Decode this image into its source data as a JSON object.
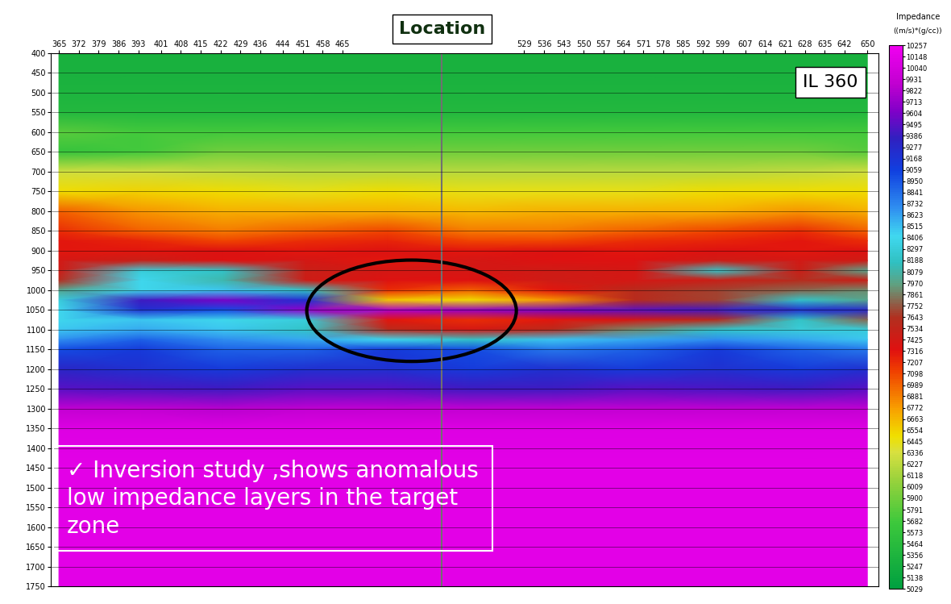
{
  "chart_data": {
    "type": "heatmap",
    "title": "IL 360",
    "marker_label": "Location",
    "location_trace": 500,
    "annotation_lines": [
      "✓ Inversion study ,shows anomalous",
      "low impedance layers in the target",
      "zone"
    ],
    "colorbar_title": "Impedance",
    "colorbar_unit": "((m/s)*(g/cc))",
    "grid": true,
    "x": [
      365,
      394,
      423,
      452,
      481,
      510,
      539,
      568,
      597,
      626,
      650
    ],
    "y": [
      400,
      450,
      500,
      550,
      600,
      650,
      700,
      750,
      800,
      850,
      875,
      900,
      925,
      950,
      975,
      1000,
      1025,
      1050,
      1075,
      1100,
      1125,
      1150,
      1200,
      1250,
      1300,
      1350,
      1450,
      1550,
      1650,
      1750
    ],
    "cells": [
      [
        5300,
        5300,
        5300,
        5300,
        5300,
        5300,
        5300,
        5300,
        5300,
        5300,
        5300
      ],
      [
        5300,
        5300,
        5300,
        5300,
        5300,
        5300,
        5300,
        5300,
        5300,
        5300,
        5300
      ],
      [
        5350,
        5350,
        5350,
        5350,
        5350,
        5350,
        5350,
        5350,
        5350,
        5350,
        5350
      ],
      [
        5400,
        5400,
        5400,
        5400,
        5400,
        5400,
        5400,
        5400,
        5400,
        5400,
        5400
      ],
      [
        5800,
        5700,
        5700,
        5700,
        5700,
        5700,
        5700,
        5700,
        5700,
        5700,
        5700
      ],
      [
        5600,
        5700,
        5900,
        5900,
        5900,
        5900,
        5900,
        5900,
        5900,
        5900,
        5800
      ],
      [
        6300,
        6300,
        6250,
        6200,
        6200,
        6200,
        6200,
        6200,
        6200,
        6250,
        6300
      ],
      [
        6500,
        6550,
        6500,
        6450,
        6500,
        6450,
        6450,
        6450,
        6500,
        6500,
        6500
      ],
      [
        7000,
        6800,
        6700,
        6700,
        6700,
        6650,
        6700,
        6700,
        6700,
        6800,
        6700
      ],
      [
        7200,
        7000,
        6900,
        7000,
        7100,
        6900,
        6900,
        7000,
        7100,
        7200,
        7000
      ],
      [
        7300,
        7250,
        7100,
        7200,
        7250,
        7100,
        7100,
        7200,
        7250,
        7300,
        7200
      ],
      [
        7300,
        7300,
        7350,
        7300,
        7350,
        7300,
        7350,
        7300,
        7350,
        7300,
        7350
      ],
      [
        7400,
        7500,
        7350,
        7400,
        7300,
        7400,
        7350,
        7350,
        7450,
        7400,
        7450
      ],
      [
        7450,
        8300,
        8200,
        7500,
        7400,
        7400,
        7450,
        7400,
        8200,
        7500,
        8000
      ],
      [
        7600,
        8400,
        8100,
        7450,
        7350,
        7350,
        7450,
        7400,
        7500,
        7600,
        7500
      ],
      [
        8000,
        8400,
        8500,
        8200,
        7200,
        7000,
        7300,
        7600,
        7700,
        7800,
        7900
      ],
      [
        8300,
        9400,
        9600,
        9200,
        6600,
        6500,
        6800,
        7600,
        7700,
        8200,
        8000
      ],
      [
        8400,
        9200,
        9000,
        9700,
        9800,
        9700,
        9600,
        9500,
        9400,
        9200,
        9300
      ],
      [
        8400,
        8500,
        8400,
        8300,
        7300,
        7200,
        7300,
        7400,
        7600,
        8200,
        7800
      ],
      [
        8500,
        8600,
        8500,
        8200,
        7600,
        7400,
        7600,
        7900,
        8200,
        8300,
        8300
      ],
      [
        8700,
        8900,
        8700,
        8600,
        8400,
        8200,
        8500,
        8600,
        8700,
        8600,
        8500
      ],
      [
        9000,
        9100,
        8900,
        8900,
        9100,
        9000,
        8800,
        8900,
        9100,
        8900,
        8800
      ],
      [
        9300,
        9200,
        9100,
        9200,
        9200,
        9100,
        9200,
        9100,
        9200,
        9100,
        9200
      ],
      [
        9500,
        9450,
        9400,
        9500,
        9500,
        9400,
        9400,
        9500,
        9450,
        9400,
        9500
      ],
      [
        9900,
        9900,
        9850,
        9900,
        9900,
        9900,
        9900,
        9900,
        9900,
        9900,
        9900
      ],
      [
        10100,
        10100,
        10100,
        10100,
        10100,
        10100,
        10100,
        10100,
        10100,
        10100,
        10100
      ],
      [
        10150,
        10150,
        10150,
        10150,
        10150,
        10150,
        10150,
        10150,
        10150,
        10150,
        10150
      ],
      [
        10150,
        10150,
        10150,
        10150,
        10150,
        10150,
        10150,
        10150,
        10150,
        10150,
        10150
      ],
      [
        10150,
        10150,
        10150,
        10150,
        10150,
        10150,
        10150,
        10150,
        10150,
        10150,
        10150
      ],
      [
        10150,
        10150,
        10150,
        10150,
        10150,
        10150,
        10150,
        10150,
        10150,
        10150,
        10150
      ]
    ],
    "xlim": [
      362,
      654
    ],
    "xticks": [
      365,
      372,
      379,
      386,
      393,
      401,
      408,
      415,
      422,
      429,
      436,
      444,
      451,
      458,
      465,
      529,
      536,
      543,
      550,
      557,
      564,
      571,
      578,
      585,
      592,
      599,
      607,
      614,
      621,
      628,
      635,
      642,
      650
    ],
    "ylim": [
      1750,
      400
    ],
    "yticks": [
      400,
      450,
      500,
      550,
      600,
      650,
      700,
      750,
      800,
      850,
      900,
      950,
      1000,
      1050,
      1100,
      1150,
      1200,
      1250,
      1300,
      1350,
      1400,
      1450,
      1500,
      1550,
      1600,
      1650,
      1700,
      1750
    ],
    "colorbar_range": [
      5029,
      10257
    ],
    "colorbar_ticks": [
      10257,
      10148,
      10040,
      9931,
      9822,
      9713,
      9604,
      9495,
      9386,
      9277,
      9168,
      9059,
      8950,
      8841,
      8732,
      8623,
      8515,
      8406,
      8297,
      8188,
      8079,
      7970,
      7861,
      7752,
      7643,
      7534,
      7425,
      7316,
      7207,
      7098,
      6989,
      6881,
      6772,
      6663,
      6554,
      6445,
      6336,
      6227,
      6118,
      6009,
      5900,
      5791,
      5682,
      5573,
      5464,
      5356,
      5247,
      5138,
      5029
    ]
  }
}
